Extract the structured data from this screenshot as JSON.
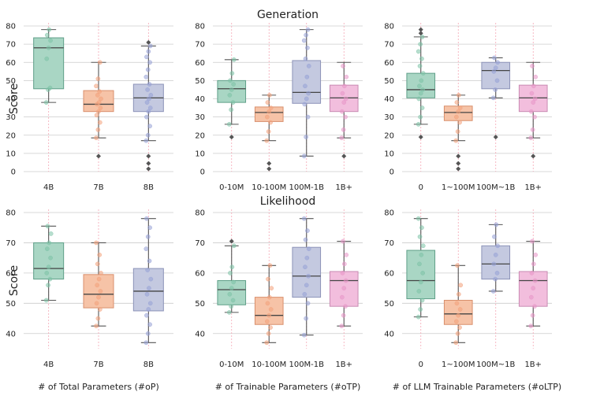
{
  "figure": {
    "row_titles": [
      "Generation",
      "Likelihood"
    ],
    "row_ylabels": [
      "Score",
      "Score"
    ],
    "col_xlabels": [
      "# of Total Parameters (#oP)",
      "# of Trainable Parameters (#oTP)",
      "# of LLM Trainable Parameters (#oLTP)"
    ]
  },
  "colors": {
    "group_fills": [
      "#a9d6c4",
      "#f6c3a7",
      "#c4c9e0",
      "#f2bedd"
    ],
    "group_edges": [
      "#5f9f88",
      "#d98f6c",
      "#8c93b8",
      "#c98bb3"
    ],
    "group_points": [
      "#7cc2a6",
      "#f2a07a",
      "#95a0d6",
      "#e794c6"
    ],
    "whisker": "#555555",
    "median": "#444444",
    "outlier": "#555555",
    "grid": "#cccccc",
    "vline": "#f4a6b4",
    "text": "#222222"
  },
  "chart_data": [
    {
      "id": "gen-op",
      "type": "box",
      "row": 0,
      "col": 0,
      "title": "",
      "xlabel": "",
      "ylabel": "Score",
      "ylim": [
        0,
        80
      ],
      "yticks": [
        0,
        10,
        20,
        30,
        40,
        50,
        60,
        70,
        80
      ],
      "categories": [
        "4B",
        "7B",
        "8B"
      ],
      "boxes": [
        {
          "q1": 45.5,
          "median": 68,
          "q3": 73.5,
          "whislo": 38,
          "whishi": 78,
          "outliers": [],
          "points": [
            38,
            45,
            46,
            62,
            68,
            72,
            75,
            78
          ]
        },
        {
          "q1": 33,
          "median": 37,
          "q3": 44.5,
          "whislo": 18.5,
          "whishi": 60,
          "outliers": [
            8.5
          ],
          "points": [
            18.5,
            23,
            27,
            31,
            33,
            35,
            37,
            38,
            40,
            42,
            44,
            47,
            51,
            60
          ]
        },
        {
          "q1": 33,
          "median": 40.5,
          "q3": 48,
          "whislo": 17,
          "whishi": 69,
          "outliers": [
            1.5,
            4.5,
            8.5,
            71
          ],
          "points": [
            17,
            20,
            25,
            30,
            33,
            35,
            38,
            40,
            42,
            45,
            48,
            52,
            56,
            60,
            63,
            66,
            69
          ]
        }
      ]
    },
    {
      "id": "gen-otp",
      "type": "box",
      "row": 0,
      "col": 1,
      "title": "Generation",
      "xlabel": "",
      "ylabel": "",
      "ylim": [
        0,
        80
      ],
      "yticks": [
        0,
        10,
        20,
        30,
        40,
        50,
        60,
        70,
        80
      ],
      "categories": [
        "0-10M",
        "10-100M",
        "100M-1B",
        "1B+"
      ],
      "boxes": [
        {
          "q1": 38,
          "median": 45.5,
          "q3": 50,
          "whislo": 26,
          "whishi": 61.5,
          "outliers": [
            19
          ],
          "points": [
            26,
            34,
            38,
            42,
            45,
            48,
            50,
            54,
            61.5
          ]
        },
        {
          "q1": 27.5,
          "median": 32.5,
          "q3": 35.5,
          "whislo": 17,
          "whishi": 42,
          "outliers": [
            1.5,
            4.5
          ],
          "points": [
            17,
            22,
            27,
            30,
            33,
            35,
            38,
            42
          ]
        },
        {
          "q1": 37.5,
          "median": 43.5,
          "q3": 61,
          "whislo": 8.5,
          "whishi": 78,
          "outliers": [],
          "points": [
            8.5,
            19,
            30,
            37,
            40,
            43,
            47,
            52,
            58,
            62,
            68,
            72,
            75,
            78
          ]
        },
        {
          "q1": 33,
          "median": 40.5,
          "q3": 47.5,
          "whislo": 18.5,
          "whishi": 60,
          "outliers": [
            8.5
          ],
          "points": [
            18.5,
            23,
            30,
            33,
            38,
            40,
            43,
            47,
            52,
            58
          ]
        }
      ]
    },
    {
      "id": "gen-oltp",
      "type": "box",
      "row": 0,
      "col": 2,
      "title": "",
      "xlabel": "",
      "ylabel": "",
      "ylim": [
        0,
        80
      ],
      "yticks": [
        0,
        10,
        20,
        30,
        40,
        50,
        60,
        70,
        80
      ],
      "categories": [
        "0",
        "1~100M",
        "100M~1B",
        "1B+"
      ],
      "boxes": [
        {
          "q1": 40.5,
          "median": 45,
          "q3": 54,
          "whislo": 26,
          "whishi": 74,
          "outliers": [
            19,
            76,
            78
          ],
          "points": [
            26,
            30,
            35,
            40,
            43,
            45,
            47,
            50,
            54,
            58,
            62,
            66,
            70,
            74
          ]
        },
        {
          "q1": 28,
          "median": 32.5,
          "q3": 36,
          "whislo": 17,
          "whishi": 42,
          "outliers": [
            1.5,
            4.5,
            8.5
          ],
          "points": [
            17,
            22,
            27,
            30,
            33,
            35,
            38,
            42
          ]
        },
        {
          "q1": 45.5,
          "median": 55.5,
          "q3": 60,
          "whislo": 40.5,
          "whishi": 62.5,
          "outliers": [
            19
          ],
          "points": [
            40.5,
            45,
            50,
            55,
            57,
            60,
            62.5
          ]
        },
        {
          "q1": 33,
          "median": 40.5,
          "q3": 47.5,
          "whislo": 18.5,
          "whishi": 60,
          "outliers": [
            8.5
          ],
          "points": [
            18.5,
            23,
            30,
            33,
            38,
            40,
            43,
            47,
            52,
            58
          ]
        }
      ]
    },
    {
      "id": "lik-op",
      "type": "box",
      "row": 1,
      "col": 0,
      "title": "",
      "xlabel": "# of Total Parameters (#oP)",
      "ylabel": "Score",
      "ylim": [
        35,
        80
      ],
      "yticks": [
        40,
        50,
        60,
        70,
        80
      ],
      "categories": [
        "4B",
        "7B",
        "8B"
      ],
      "boxes": [
        {
          "q1": 58,
          "median": 61.5,
          "q3": 70,
          "whislo": 51,
          "whishi": 75.5,
          "outliers": [],
          "points": [
            51,
            56,
            58,
            60,
            62,
            65,
            68,
            70,
            73,
            75.5
          ]
        },
        {
          "q1": 48.5,
          "median": 53,
          "q3": 59.5,
          "whislo": 42.5,
          "whishi": 70,
          "outliers": [],
          "points": [
            42.5,
            45,
            48,
            50,
            52,
            54,
            56,
            58,
            60,
            63,
            66,
            70
          ]
        },
        {
          "q1": 47.5,
          "median": 54,
          "q3": 61.5,
          "whislo": 37,
          "whishi": 78,
          "outliers": [],
          "points": [
            37,
            40,
            43,
            46,
            48,
            50,
            53,
            55,
            58,
            61,
            64,
            68,
            72,
            75,
            78
          ]
        }
      ]
    },
    {
      "id": "lik-otp",
      "type": "box",
      "row": 1,
      "col": 1,
      "title": "Likelihood",
      "xlabel": "# of Trainable Parameters (#oTP)",
      "ylabel": "",
      "ylim": [
        35,
        80
      ],
      "yticks": [
        40,
        50,
        60,
        70,
        80
      ],
      "categories": [
        "0-10M",
        "10-100M",
        "100M-1B",
        "1B+"
      ],
      "boxes": [
        {
          "q1": 49.5,
          "median": 54.5,
          "q3": 57.5,
          "whislo": 47,
          "whishi": 69,
          "outliers": [
            70.5
          ],
          "points": [
            47,
            49,
            51,
            53,
            55,
            57,
            60,
            62,
            69
          ]
        },
        {
          "q1": 43,
          "median": 46,
          "q3": 52,
          "whislo": 37,
          "whishi": 62.5,
          "outliers": [],
          "points": [
            37,
            40,
            42,
            44,
            46,
            48,
            50,
            52,
            55,
            58,
            62.5
          ]
        },
        {
          "q1": 52,
          "median": 59,
          "q3": 68.5,
          "whislo": 39.5,
          "whishi": 78,
          "outliers": [],
          "points": [
            39.5,
            45,
            50,
            53,
            56,
            59,
            62,
            65,
            68,
            71,
            74,
            78
          ]
        },
        {
          "q1": 49,
          "median": 57.5,
          "q3": 60.5,
          "whislo": 42.5,
          "whishi": 70.5,
          "outliers": [],
          "points": [
            42.5,
            46,
            49,
            52,
            55,
            57.5,
            60,
            63,
            66,
            70.5
          ]
        }
      ]
    },
    {
      "id": "lik-oltp",
      "type": "box",
      "row": 1,
      "col": 2,
      "title": "",
      "xlabel": "# of LLM Trainable Parameters (#oLTP)",
      "ylabel": "",
      "ylim": [
        35,
        80
      ],
      "yticks": [
        40,
        50,
        60,
        70,
        80
      ],
      "categories": [
        "0",
        "1~100M",
        "100M~1B",
        "1B+"
      ],
      "boxes": [
        {
          "q1": 51.5,
          "median": 57.5,
          "q3": 67.5,
          "whislo": 45.5,
          "whishi": 78,
          "outliers": [],
          "points": [
            45.5,
            48,
            51,
            54,
            57,
            60,
            63,
            66,
            69,
            72,
            75,
            78
          ]
        },
        {
          "q1": 43,
          "median": 46.5,
          "q3": 51,
          "whislo": 37,
          "whishi": 62.5,
          "outliers": [],
          "points": [
            37,
            40,
            42,
            44,
            46,
            48,
            50,
            53,
            56,
            62.5
          ]
        },
        {
          "q1": 58,
          "median": 63,
          "q3": 69,
          "whislo": 54,
          "whishi": 76,
          "outliers": [],
          "points": [
            54,
            58,
            60,
            63,
            66,
            69,
            72,
            76
          ]
        },
        {
          "q1": 49,
          "median": 57.5,
          "q3": 60.5,
          "whislo": 42.5,
          "whishi": 70.5,
          "outliers": [],
          "points": [
            42.5,
            46,
            49,
            52,
            55,
            57.5,
            60,
            63,
            66,
            70.5
          ]
        }
      ]
    }
  ]
}
